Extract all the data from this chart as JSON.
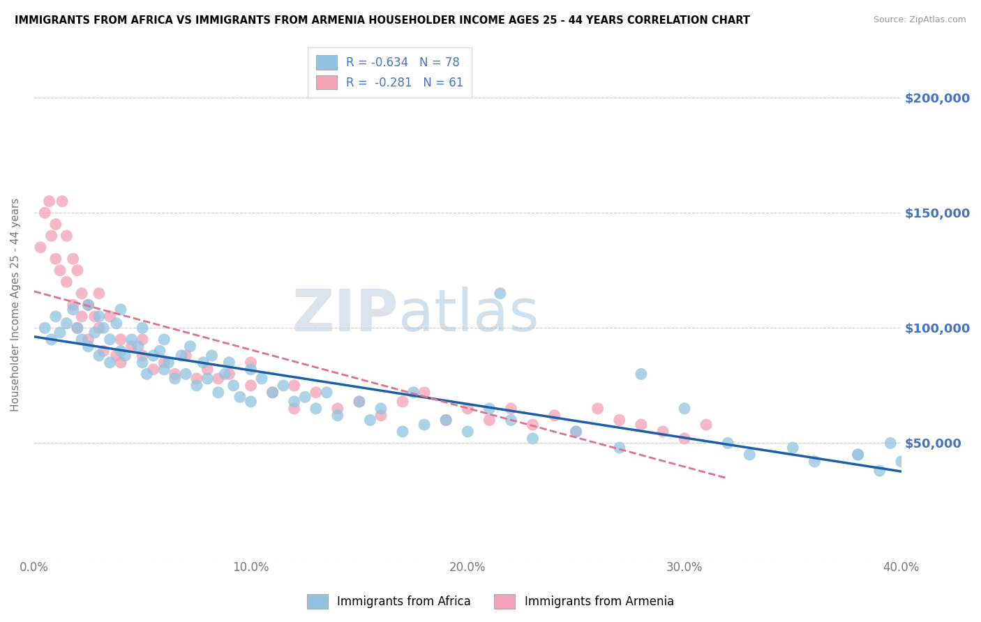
{
  "title": "IMMIGRANTS FROM AFRICA VS IMMIGRANTS FROM ARMENIA HOUSEHOLDER INCOME AGES 25 - 44 YEARS CORRELATION CHART",
  "source": "Source: ZipAtlas.com",
  "ylabel": "Householder Income Ages 25 - 44 years",
  "xlim": [
    0.0,
    0.4
  ],
  "ylim": [
    0,
    220000
  ],
  "yticks": [
    0,
    50000,
    100000,
    150000,
    200000
  ],
  "xtick_labels": [
    "0.0%",
    "10.0%",
    "20.0%",
    "30.0%",
    "40.0%"
  ],
  "xticks": [
    0.0,
    0.1,
    0.2,
    0.3,
    0.4
  ],
  "africa_color": "#90C3E0",
  "armenia_color": "#F4A0B5",
  "africa_line_color": "#1B5FA8",
  "armenia_line_color": "#E07090",
  "watermark_zip": "ZIP",
  "watermark_atlas": "atlas",
  "legend_africa_label": "R = -0.634   N = 78",
  "legend_armenia_label": "R =  -0.281   N = 61",
  "africa_scatter_x": [
    0.005,
    0.008,
    0.01,
    0.012,
    0.015,
    0.018,
    0.02,
    0.022,
    0.025,
    0.025,
    0.028,
    0.03,
    0.03,
    0.032,
    0.035,
    0.035,
    0.038,
    0.04,
    0.04,
    0.042,
    0.045,
    0.048,
    0.05,
    0.05,
    0.052,
    0.055,
    0.058,
    0.06,
    0.06,
    0.062,
    0.065,
    0.068,
    0.07,
    0.072,
    0.075,
    0.078,
    0.08,
    0.082,
    0.085,
    0.088,
    0.09,
    0.092,
    0.095,
    0.1,
    0.1,
    0.105,
    0.11,
    0.115,
    0.12,
    0.125,
    0.13,
    0.135,
    0.14,
    0.15,
    0.155,
    0.16,
    0.17,
    0.175,
    0.18,
    0.19,
    0.2,
    0.21,
    0.215,
    0.22,
    0.23,
    0.25,
    0.27,
    0.28,
    0.3,
    0.32,
    0.33,
    0.35,
    0.36,
    0.38,
    0.39,
    0.4,
    0.395,
    0.38
  ],
  "africa_scatter_y": [
    100000,
    95000,
    105000,
    98000,
    102000,
    108000,
    100000,
    95000,
    110000,
    92000,
    98000,
    105000,
    88000,
    100000,
    95000,
    85000,
    102000,
    90000,
    108000,
    88000,
    95000,
    92000,
    85000,
    100000,
    80000,
    88000,
    90000,
    82000,
    95000,
    85000,
    78000,
    88000,
    80000,
    92000,
    75000,
    85000,
    78000,
    88000,
    72000,
    80000,
    85000,
    75000,
    70000,
    82000,
    68000,
    78000,
    72000,
    75000,
    68000,
    70000,
    65000,
    72000,
    62000,
    68000,
    60000,
    65000,
    55000,
    72000,
    58000,
    60000,
    55000,
    65000,
    115000,
    60000,
    52000,
    55000,
    48000,
    80000,
    65000,
    50000,
    45000,
    48000,
    42000,
    45000,
    38000,
    42000,
    50000,
    45000
  ],
  "armenia_scatter_x": [
    0.003,
    0.005,
    0.007,
    0.008,
    0.01,
    0.01,
    0.012,
    0.013,
    0.015,
    0.015,
    0.018,
    0.018,
    0.02,
    0.02,
    0.022,
    0.022,
    0.025,
    0.025,
    0.028,
    0.03,
    0.03,
    0.032,
    0.035,
    0.038,
    0.04,
    0.04,
    0.045,
    0.05,
    0.05,
    0.055,
    0.06,
    0.065,
    0.07,
    0.075,
    0.08,
    0.085,
    0.09,
    0.1,
    0.1,
    0.11,
    0.12,
    0.12,
    0.13,
    0.14,
    0.15,
    0.16,
    0.17,
    0.18,
    0.19,
    0.2,
    0.21,
    0.22,
    0.23,
    0.24,
    0.25,
    0.26,
    0.27,
    0.28,
    0.29,
    0.3,
    0.31
  ],
  "armenia_scatter_y": [
    135000,
    150000,
    155000,
    140000,
    130000,
    145000,
    125000,
    155000,
    120000,
    140000,
    130000,
    110000,
    125000,
    100000,
    115000,
    105000,
    110000,
    95000,
    105000,
    100000,
    115000,
    90000,
    105000,
    88000,
    95000,
    85000,
    92000,
    88000,
    95000,
    82000,
    85000,
    80000,
    88000,
    78000,
    82000,
    78000,
    80000,
    85000,
    75000,
    72000,
    75000,
    65000,
    72000,
    65000,
    68000,
    62000,
    68000,
    72000,
    60000,
    65000,
    60000,
    65000,
    58000,
    62000,
    55000,
    65000,
    60000,
    58000,
    55000,
    52000,
    58000
  ]
}
